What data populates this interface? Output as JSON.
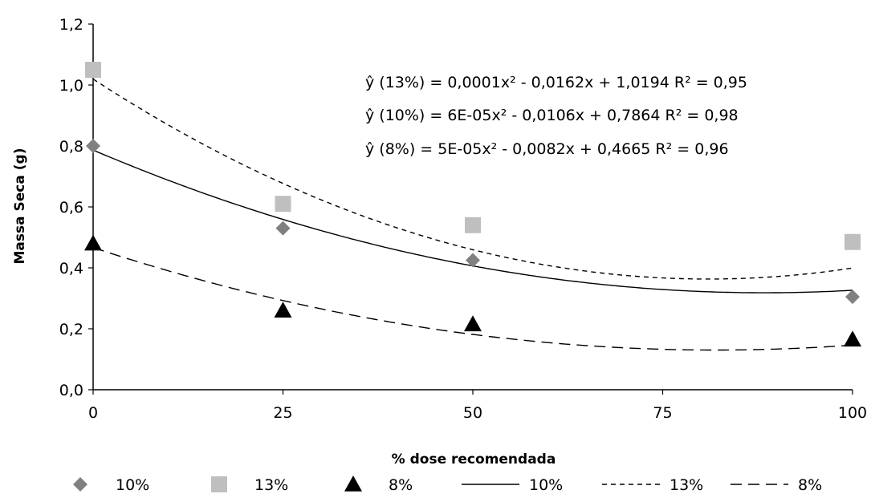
{
  "chart_data": {
    "type": "scatter",
    "xlabel": "% dose recomendada",
    "ylabel": "Massa Seca (g)",
    "xlim": [
      0,
      100
    ],
    "ylim": [
      0,
      1.2
    ],
    "x_ticks": [
      "0",
      "25",
      "50",
      "75",
      "100"
    ],
    "y_ticks": [
      "0,0",
      "0,2",
      "0,4",
      "0,6",
      "0,8",
      "1,0",
      "1,2"
    ],
    "x_categories": [
      0,
      25,
      50,
      100
    ],
    "series": [
      {
        "name": "10%",
        "marker": "diamond",
        "color": "#808080",
        "values": [
          0.8,
          0.53,
          0.425,
          0.305
        ]
      },
      {
        "name": "13%",
        "marker": "square",
        "color": "#bfbfbf",
        "values": [
          1.05,
          0.61,
          0.54,
          0.485
        ]
      },
      {
        "name": "8%",
        "marker": "triangle",
        "color": "#000000",
        "values": [
          0.48,
          0.26,
          0.215,
          0.165
        ]
      }
    ],
    "trendlines": [
      {
        "name": "10%",
        "style": "solid",
        "coefficients": [
          6e-05,
          -0.0106,
          0.7864
        ]
      },
      {
        "name": "13%",
        "style": "short-dash",
        "coefficients": [
          0.0001,
          -0.0162,
          1.0194
        ]
      },
      {
        "name": "8%",
        "style": "long-dash",
        "coefficients": [
          5e-05,
          -0.0082,
          0.4665
        ]
      }
    ],
    "equations": [
      "ŷ (13%) = 0,0001x² - 0,0162x + 1,0194  R² = 0,95",
      "ŷ (10%) = 6E-05x² - 0,0106x + 0,7864  R² = 0,98",
      "ŷ (8%) = 5E-05x² - 0,0082x + 0,4665  R² = 0,96"
    ],
    "legend_position": "bottom",
    "grid": false
  }
}
